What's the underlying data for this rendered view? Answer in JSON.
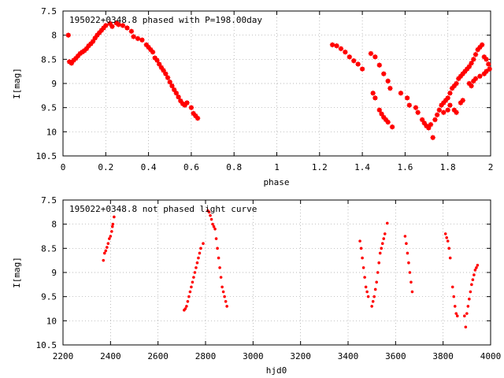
{
  "chart_data": [
    {
      "type": "scatter",
      "title": "195022+0348.8 phased with P=198.00day",
      "xlabel": "phase",
      "ylabel": "I[mag]",
      "xlim": [
        0,
        2
      ],
      "ylim": [
        7.5,
        10.5
      ],
      "y_inverted": true,
      "grid": true,
      "color": "#ff0000",
      "marker": "filled-square-star",
      "xticks": [
        "0",
        "0.2",
        "0.4",
        "0.6",
        "0.8",
        "1",
        "1.2",
        "1.4",
        "1.6",
        "1.8",
        "2"
      ],
      "yticks": [
        "7.5",
        "8",
        "8.5",
        "9",
        "9.5",
        "10",
        "10.5"
      ],
      "points": [
        [
          0.025,
          8.0
        ],
        [
          0.03,
          8.55
        ],
        [
          0.04,
          8.58
        ],
        [
          0.05,
          8.52
        ],
        [
          0.06,
          8.48
        ],
        [
          0.07,
          8.43
        ],
        [
          0.08,
          8.38
        ],
        [
          0.09,
          8.35
        ],
        [
          0.1,
          8.32
        ],
        [
          0.11,
          8.28
        ],
        [
          0.12,
          8.22
        ],
        [
          0.13,
          8.18
        ],
        [
          0.14,
          8.13
        ],
        [
          0.15,
          8.06
        ],
        [
          0.16,
          8.0
        ],
        [
          0.17,
          7.95
        ],
        [
          0.18,
          7.9
        ],
        [
          0.19,
          7.85
        ],
        [
          0.2,
          7.8
        ],
        [
          0.22,
          7.76
        ],
        [
          0.23,
          7.82
        ],
        [
          0.25,
          7.75
        ],
        [
          0.26,
          7.78
        ],
        [
          0.28,
          7.8
        ],
        [
          0.3,
          7.85
        ],
        [
          0.32,
          7.92
        ],
        [
          0.33,
          8.03
        ],
        [
          0.35,
          8.07
        ],
        [
          0.37,
          8.1
        ],
        [
          0.39,
          8.2
        ],
        [
          0.4,
          8.25
        ],
        [
          0.41,
          8.3
        ],
        [
          0.42,
          8.35
        ],
        [
          0.43,
          8.47
        ],
        [
          0.44,
          8.52
        ],
        [
          0.45,
          8.6
        ],
        [
          0.46,
          8.67
        ],
        [
          0.47,
          8.73
        ],
        [
          0.48,
          8.8
        ],
        [
          0.49,
          8.88
        ],
        [
          0.5,
          8.97
        ],
        [
          0.51,
          9.05
        ],
        [
          0.52,
          9.13
        ],
        [
          0.53,
          9.2
        ],
        [
          0.54,
          9.28
        ],
        [
          0.55,
          9.36
        ],
        [
          0.56,
          9.42
        ],
        [
          0.57,
          9.45
        ],
        [
          0.58,
          9.4
        ],
        [
          0.6,
          9.5
        ],
        [
          0.61,
          9.62
        ],
        [
          0.62,
          9.67
        ],
        [
          0.63,
          9.72
        ],
        [
          1.26,
          8.2
        ],
        [
          1.28,
          8.22
        ],
        [
          1.3,
          8.28
        ],
        [
          1.32,
          8.35
        ],
        [
          1.34,
          8.45
        ],
        [
          1.36,
          8.53
        ],
        [
          1.38,
          8.6
        ],
        [
          1.4,
          8.7
        ],
        [
          1.44,
          8.38
        ],
        [
          1.46,
          8.45
        ],
        [
          1.48,
          8.62
        ],
        [
          1.5,
          8.8
        ],
        [
          1.52,
          8.95
        ],
        [
          1.53,
          9.1
        ],
        [
          1.45,
          9.2
        ],
        [
          1.46,
          9.3
        ],
        [
          1.48,
          9.55
        ],
        [
          1.49,
          9.63
        ],
        [
          1.5,
          9.7
        ],
        [
          1.51,
          9.75
        ],
        [
          1.52,
          9.8
        ],
        [
          1.54,
          9.9
        ],
        [
          1.58,
          9.2
        ],
        [
          1.61,
          9.3
        ],
        [
          1.62,
          9.45
        ],
        [
          1.65,
          9.5
        ],
        [
          1.66,
          9.6
        ],
        [
          1.68,
          9.75
        ],
        [
          1.69,
          9.82
        ],
        [
          1.7,
          9.88
        ],
        [
          1.71,
          9.92
        ],
        [
          1.72,
          9.85
        ],
        [
          1.73,
          10.12
        ],
        [
          1.74,
          9.75
        ],
        [
          1.75,
          9.65
        ],
        [
          1.76,
          9.55
        ],
        [
          1.77,
          9.45
        ],
        [
          1.78,
          9.4
        ],
        [
          1.79,
          9.35
        ],
        [
          1.8,
          9.3
        ],
        [
          1.81,
          9.2
        ],
        [
          1.82,
          9.1
        ],
        [
          1.83,
          9.05
        ],
        [
          1.84,
          9.0
        ],
        [
          1.85,
          8.9
        ],
        [
          1.86,
          8.85
        ],
        [
          1.87,
          8.8
        ],
        [
          1.88,
          8.75
        ],
        [
          1.89,
          8.7
        ],
        [
          1.9,
          8.65
        ],
        [
          1.91,
          8.58
        ],
        [
          1.92,
          8.5
        ],
        [
          1.93,
          8.4
        ],
        [
          1.94,
          8.3
        ],
        [
          1.95,
          8.25
        ],
        [
          1.96,
          8.2
        ],
        [
          1.97,
          8.45
        ],
        [
          1.98,
          8.5
        ],
        [
          1.99,
          8.6
        ],
        [
          1.995,
          8.7
        ],
        [
          1.9,
          9.0
        ],
        [
          1.91,
          9.05
        ],
        [
          1.92,
          8.95
        ],
        [
          1.93,
          8.9
        ],
        [
          1.95,
          8.85
        ],
        [
          1.97,
          8.8
        ],
        [
          1.98,
          8.75
        ],
        [
          1.83,
          9.55
        ],
        [
          1.84,
          9.6
        ],
        [
          1.81,
          9.45
        ],
        [
          1.78,
          9.6
        ],
        [
          1.8,
          9.55
        ],
        [
          1.86,
          9.4
        ],
        [
          1.87,
          9.35
        ]
      ]
    },
    {
      "type": "scatter",
      "title": "195022+0348.8 not phased light curve",
      "xlabel": "hjd0",
      "ylabel": "I[mag]",
      "xlim": [
        2200,
        4000
      ],
      "ylim": [
        7.5,
        10.5
      ],
      "y_inverted": true,
      "grid": true,
      "color": "#ff0000",
      "marker": "dot",
      "xticks": [
        "2200",
        "2400",
        "2600",
        "2800",
        "3000",
        "3200",
        "3400",
        "3600",
        "3800",
        "4000"
      ],
      "yticks": [
        "7.5",
        "8",
        "8.5",
        "9",
        "9.5",
        "10",
        "10.5"
      ],
      "points": [
        [
          2370,
          8.75
        ],
        [
          2375,
          8.6
        ],
        [
          2380,
          8.55
        ],
        [
          2385,
          8.48
        ],
        [
          2390,
          8.4
        ],
        [
          2395,
          8.3
        ],
        [
          2400,
          8.25
        ],
        [
          2405,
          8.15
        ],
        [
          2408,
          8.05
        ],
        [
          2410,
          8.0
        ],
        [
          2415,
          7.85
        ],
        [
          2710,
          9.78
        ],
        [
          2715,
          9.75
        ],
        [
          2720,
          9.7
        ],
        [
          2725,
          9.6
        ],
        [
          2730,
          9.5
        ],
        [
          2735,
          9.4
        ],
        [
          2740,
          9.3
        ],
        [
          2745,
          9.2
        ],
        [
          2750,
          9.1
        ],
        [
          2755,
          9.0
        ],
        [
          2760,
          8.9
        ],
        [
          2765,
          8.8
        ],
        [
          2770,
          8.7
        ],
        [
          2775,
          8.6
        ],
        [
          2780,
          8.5
        ],
        [
          2790,
          8.4
        ],
        [
          2810,
          7.72
        ],
        [
          2815,
          7.75
        ],
        [
          2820,
          7.82
        ],
        [
          2825,
          7.9
        ],
        [
          2830,
          8.0
        ],
        [
          2835,
          8.05
        ],
        [
          2840,
          8.1
        ],
        [
          2845,
          8.3
        ],
        [
          2850,
          8.5
        ],
        [
          2855,
          8.7
        ],
        [
          2860,
          8.9
        ],
        [
          2865,
          9.1
        ],
        [
          2870,
          9.3
        ],
        [
          2875,
          9.4
        ],
        [
          2880,
          9.5
        ],
        [
          2885,
          9.6
        ],
        [
          2890,
          9.7
        ],
        [
          3450,
          8.35
        ],
        [
          3455,
          8.5
        ],
        [
          3460,
          8.7
        ],
        [
          3465,
          8.9
        ],
        [
          3470,
          9.1
        ],
        [
          3475,
          9.3
        ],
        [
          3480,
          9.4
        ],
        [
          3485,
          9.5
        ],
        [
          3500,
          9.7
        ],
        [
          3505,
          9.6
        ],
        [
          3510,
          9.5
        ],
        [
          3515,
          9.35
        ],
        [
          3520,
          9.2
        ],
        [
          3525,
          9.0
        ],
        [
          3530,
          8.8
        ],
        [
          3535,
          8.6
        ],
        [
          3540,
          8.5
        ],
        [
          3545,
          8.4
        ],
        [
          3550,
          8.3
        ],
        [
          3555,
          8.2
        ],
        [
          3565,
          7.98
        ],
        [
          3640,
          8.25
        ],
        [
          3645,
          8.4
        ],
        [
          3650,
          8.6
        ],
        [
          3655,
          8.8
        ],
        [
          3660,
          9.0
        ],
        [
          3665,
          9.2
        ],
        [
          3670,
          9.4
        ],
        [
          3810,
          8.2
        ],
        [
          3815,
          8.28
        ],
        [
          3820,
          8.35
        ],
        [
          3825,
          8.5
        ],
        [
          3830,
          8.7
        ],
        [
          3840,
          9.3
        ],
        [
          3845,
          9.5
        ],
        [
          3850,
          9.7
        ],
        [
          3855,
          9.85
        ],
        [
          3860,
          9.9
        ],
        [
          3890,
          9.9
        ],
        [
          3895,
          10.13
        ],
        [
          3900,
          9.85
        ],
        [
          3905,
          9.7
        ],
        [
          3910,
          9.55
        ],
        [
          3915,
          9.4
        ],
        [
          3920,
          9.25
        ],
        [
          3925,
          9.15
        ],
        [
          3930,
          9.05
        ],
        [
          3935,
          8.95
        ],
        [
          3940,
          8.9
        ],
        [
          3945,
          8.85
        ]
      ]
    }
  ]
}
